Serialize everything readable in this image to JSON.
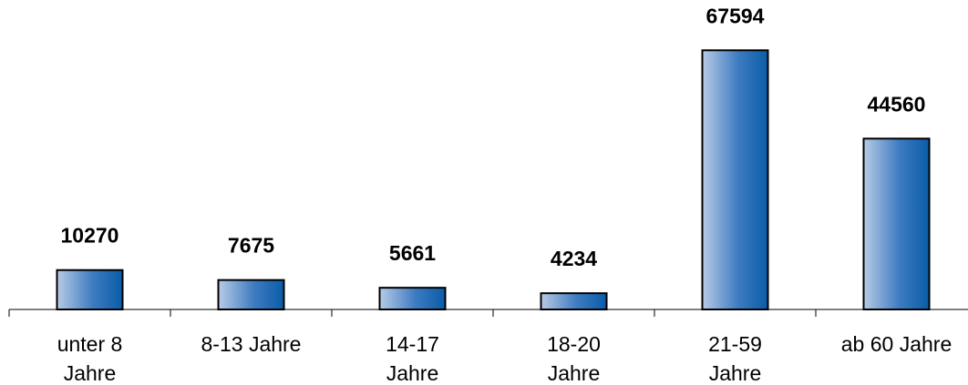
{
  "chart_data": {
    "type": "bar",
    "categories": [
      "unter 8\nJahre",
      "8-13 Jahre",
      "14-17\nJahre",
      "18-20\nJahre",
      "21-59\nJahre",
      "ab 60 Jahre"
    ],
    "values": [
      10270,
      7675,
      5661,
      4234,
      67594,
      44560
    ],
    "color": "#0a5ca8",
    "ylim": [
      0,
      80000
    ]
  }
}
